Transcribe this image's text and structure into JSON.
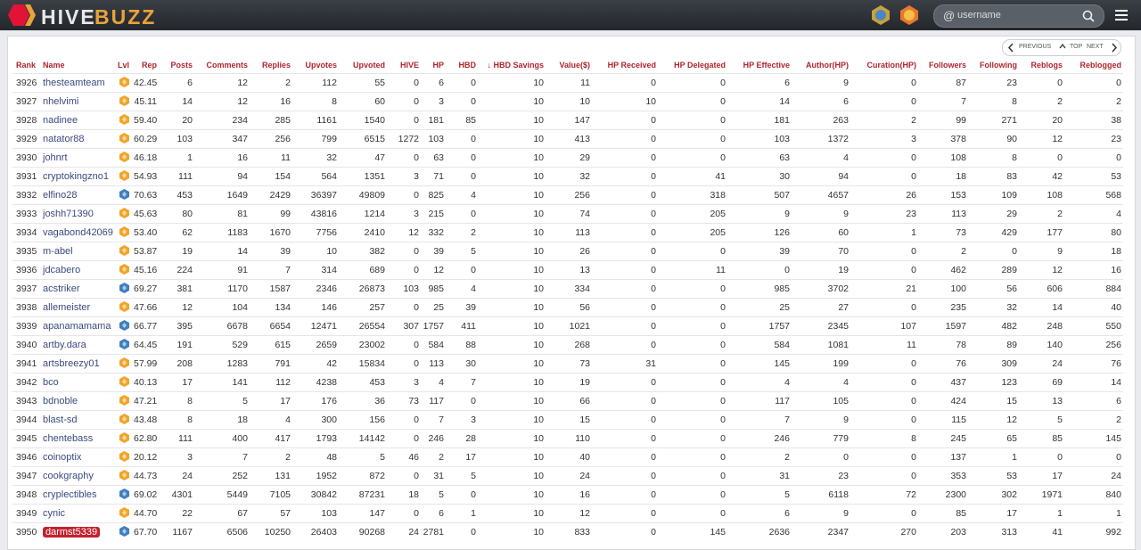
{
  "header": {
    "brand_1": "HIVE",
    "brand_2": "BUZZ",
    "search_at": "@",
    "search_placeholder": "username"
  },
  "nav": {
    "previous": "PREVIOUS",
    "top": "TOP",
    "next": "NEXT"
  },
  "table": {
    "columns": [
      "Rank",
      "Name",
      "Lvl",
      "Rep",
      "Posts",
      "Comments",
      "Replies",
      "Upvotes",
      "Upvoted",
      "HIVE",
      "HP",
      "HBD",
      "HBD Savings",
      "Value($)",
      "HP Received",
      "HP Delegated",
      "HP Effective",
      "Author(HP)",
      "Curation(HP)",
      "Followers",
      "Following",
      "Reblogs",
      "Reblogged"
    ],
    "level_colors": [
      "#f0a52a",
      "#f0a52a",
      "#f0a52a",
      "#f0a52a",
      "#f0a52a",
      "#f0a52a",
      "#3f7fc0",
      "#f0a52a",
      "#f0a52a",
      "#f0a52a",
      "#f0a52a",
      "#3f7fc0",
      "#f0a52a",
      "#3f7fc0",
      "#3f7fc0",
      "#f0a52a",
      "#f0a52a",
      "#f0a52a",
      "#f0a52a",
      "#f0a52a",
      "#f0a52a",
      "#f0a52a",
      "#3f7fc0",
      "#f0a52a",
      "#3f7fc0"
    ],
    "highlighted_row": 24,
    "rows": [
      [
        "3926",
        "thesteamteam",
        "42.45",
        "6",
        "12",
        "2",
        "112",
        "55",
        "0",
        "6",
        "0",
        "10",
        "11",
        "0",
        "0",
        "6",
        "9",
        "0",
        "87",
        "23",
        "0",
        "0"
      ],
      [
        "3927",
        "nhelvimi",
        "45.11",
        "14",
        "12",
        "16",
        "8",
        "60",
        "0",
        "3",
        "0",
        "10",
        "10",
        "10",
        "0",
        "14",
        "6",
        "0",
        "7",
        "8",
        "2",
        "2"
      ],
      [
        "3928",
        "nadinee",
        "59.40",
        "20",
        "234",
        "285",
        "1161",
        "1540",
        "0",
        "181",
        "85",
        "10",
        "147",
        "0",
        "0",
        "181",
        "263",
        "2",
        "99",
        "271",
        "20",
        "38"
      ],
      [
        "3929",
        "natator88",
        "60.29",
        "103",
        "347",
        "256",
        "799",
        "6515",
        "1272",
        "103",
        "0",
        "10",
        "413",
        "0",
        "0",
        "103",
        "1372",
        "3",
        "378",
        "90",
        "12",
        "23"
      ],
      [
        "3930",
        "johnrt",
        "46.18",
        "1",
        "16",
        "11",
        "32",
        "47",
        "0",
        "63",
        "0",
        "10",
        "29",
        "0",
        "0",
        "63",
        "4",
        "0",
        "108",
        "8",
        "0",
        "0"
      ],
      [
        "3931",
        "cryptokingzno1",
        "54.93",
        "111",
        "94",
        "154",
        "564",
        "1351",
        "3",
        "71",
        "0",
        "10",
        "32",
        "0",
        "41",
        "30",
        "94",
        "0",
        "18",
        "83",
        "42",
        "53"
      ],
      [
        "3932",
        "elfino28",
        "70.63",
        "453",
        "1649",
        "2429",
        "36397",
        "49809",
        "0",
        "825",
        "4",
        "10",
        "256",
        "0",
        "318",
        "507",
        "4657",
        "26",
        "153",
        "109",
        "108",
        "568"
      ],
      [
        "3933",
        "joshh71390",
        "45.63",
        "80",
        "81",
        "99",
        "43816",
        "1214",
        "3",
        "215",
        "0",
        "10",
        "74",
        "0",
        "205",
        "9",
        "9",
        "23",
        "113",
        "29",
        "2",
        "4"
      ],
      [
        "3934",
        "vagabond42069",
        "53.40",
        "62",
        "1183",
        "1670",
        "7756",
        "2410",
        "12",
        "332",
        "2",
        "10",
        "113",
        "0",
        "205",
        "126",
        "60",
        "1",
        "73",
        "429",
        "177",
        "80"
      ],
      [
        "3935",
        "m-abel",
        "53.87",
        "19",
        "14",
        "39",
        "10",
        "382",
        "0",
        "39",
        "5",
        "10",
        "26",
        "0",
        "0",
        "39",
        "70",
        "0",
        "2",
        "0",
        "9",
        "18"
      ],
      [
        "3936",
        "jdcabero",
        "45.16",
        "224",
        "91",
        "7",
        "314",
        "689",
        "0",
        "12",
        "0",
        "10",
        "13",
        "0",
        "11",
        "0",
        "19",
        "0",
        "462",
        "289",
        "12",
        "16"
      ],
      [
        "3937",
        "acstriker",
        "69.27",
        "381",
        "1170",
        "1587",
        "2346",
        "26873",
        "103",
        "985",
        "4",
        "10",
        "334",
        "0",
        "0",
        "985",
        "3702",
        "21",
        "100",
        "56",
        "606",
        "884"
      ],
      [
        "3938",
        "allemeister",
        "47.66",
        "12",
        "104",
        "134",
        "146",
        "257",
        "0",
        "25",
        "39",
        "10",
        "56",
        "0",
        "0",
        "25",
        "27",
        "0",
        "235",
        "32",
        "14",
        "40"
      ],
      [
        "3939",
        "apanamamama",
        "66.77",
        "395",
        "6678",
        "6654",
        "12471",
        "26554",
        "307",
        "1757",
        "411",
        "10",
        "1021",
        "0",
        "0",
        "1757",
        "2345",
        "107",
        "1597",
        "482",
        "248",
        "550"
      ],
      [
        "3940",
        "artby.dara",
        "64.45",
        "191",
        "529",
        "615",
        "2659",
        "23002",
        "0",
        "584",
        "88",
        "10",
        "268",
        "0",
        "0",
        "584",
        "1081",
        "11",
        "78",
        "89",
        "140",
        "256"
      ],
      [
        "3941",
        "artsbreezy01",
        "57.99",
        "208",
        "1283",
        "791",
        "42",
        "15834",
        "0",
        "113",
        "30",
        "10",
        "73",
        "31",
        "0",
        "145",
        "199",
        "0",
        "76",
        "309",
        "24",
        "76"
      ],
      [
        "3942",
        "bco",
        "40.13",
        "17",
        "141",
        "112",
        "4238",
        "453",
        "3",
        "4",
        "7",
        "10",
        "19",
        "0",
        "0",
        "4",
        "4",
        "0",
        "437",
        "123",
        "69",
        "14"
      ],
      [
        "3943",
        "bdnoble",
        "47.21",
        "8",
        "5",
        "17",
        "176",
        "36",
        "73",
        "117",
        "0",
        "10",
        "66",
        "0",
        "0",
        "117",
        "105",
        "0",
        "424",
        "15",
        "13",
        "6"
      ],
      [
        "3944",
        "blast-sd",
        "43.48",
        "8",
        "18",
        "4",
        "300",
        "156",
        "0",
        "7",
        "3",
        "10",
        "15",
        "0",
        "0",
        "7",
        "9",
        "0",
        "115",
        "12",
        "5",
        "2"
      ],
      [
        "3945",
        "chentebass",
        "62.80",
        "111",
        "400",
        "417",
        "1793",
        "14142",
        "0",
        "246",
        "28",
        "10",
        "110",
        "0",
        "0",
        "246",
        "779",
        "8",
        "245",
        "65",
        "85",
        "145"
      ],
      [
        "3946",
        "coinoptix",
        "20.12",
        "3",
        "7",
        "2",
        "48",
        "5",
        "46",
        "2",
        "17",
        "10",
        "40",
        "0",
        "0",
        "2",
        "0",
        "0",
        "137",
        "1",
        "0",
        "0"
      ],
      [
        "3947",
        "cookgraphy",
        "44.73",
        "24",
        "252",
        "131",
        "1952",
        "872",
        "0",
        "31",
        "5",
        "10",
        "24",
        "0",
        "0",
        "31",
        "23",
        "0",
        "353",
        "53",
        "17",
        "24"
      ],
      [
        "3948",
        "cryplectibles",
        "69.02",
        "4301",
        "5449",
        "7105",
        "30842",
        "87231",
        "18",
        "5",
        "0",
        "10",
        "16",
        "0",
        "0",
        "5",
        "6118",
        "72",
        "2300",
        "302",
        "1971",
        "840"
      ],
      [
        "3949",
        "cynic",
        "44.70",
        "22",
        "67",
        "57",
        "103",
        "147",
        "0",
        "6",
        "1",
        "10",
        "12",
        "0",
        "0",
        "6",
        "9",
        "0",
        "85",
        "17",
        "1",
        "1"
      ],
      [
        "3950",
        "darmst5339",
        "67.70",
        "1167",
        "6506",
        "10250",
        "26403",
        "90268",
        "24",
        "2781",
        "0",
        "10",
        "833",
        "0",
        "145",
        "2636",
        "2347",
        "270",
        "203",
        "313",
        "41",
        "992"
      ]
    ]
  }
}
